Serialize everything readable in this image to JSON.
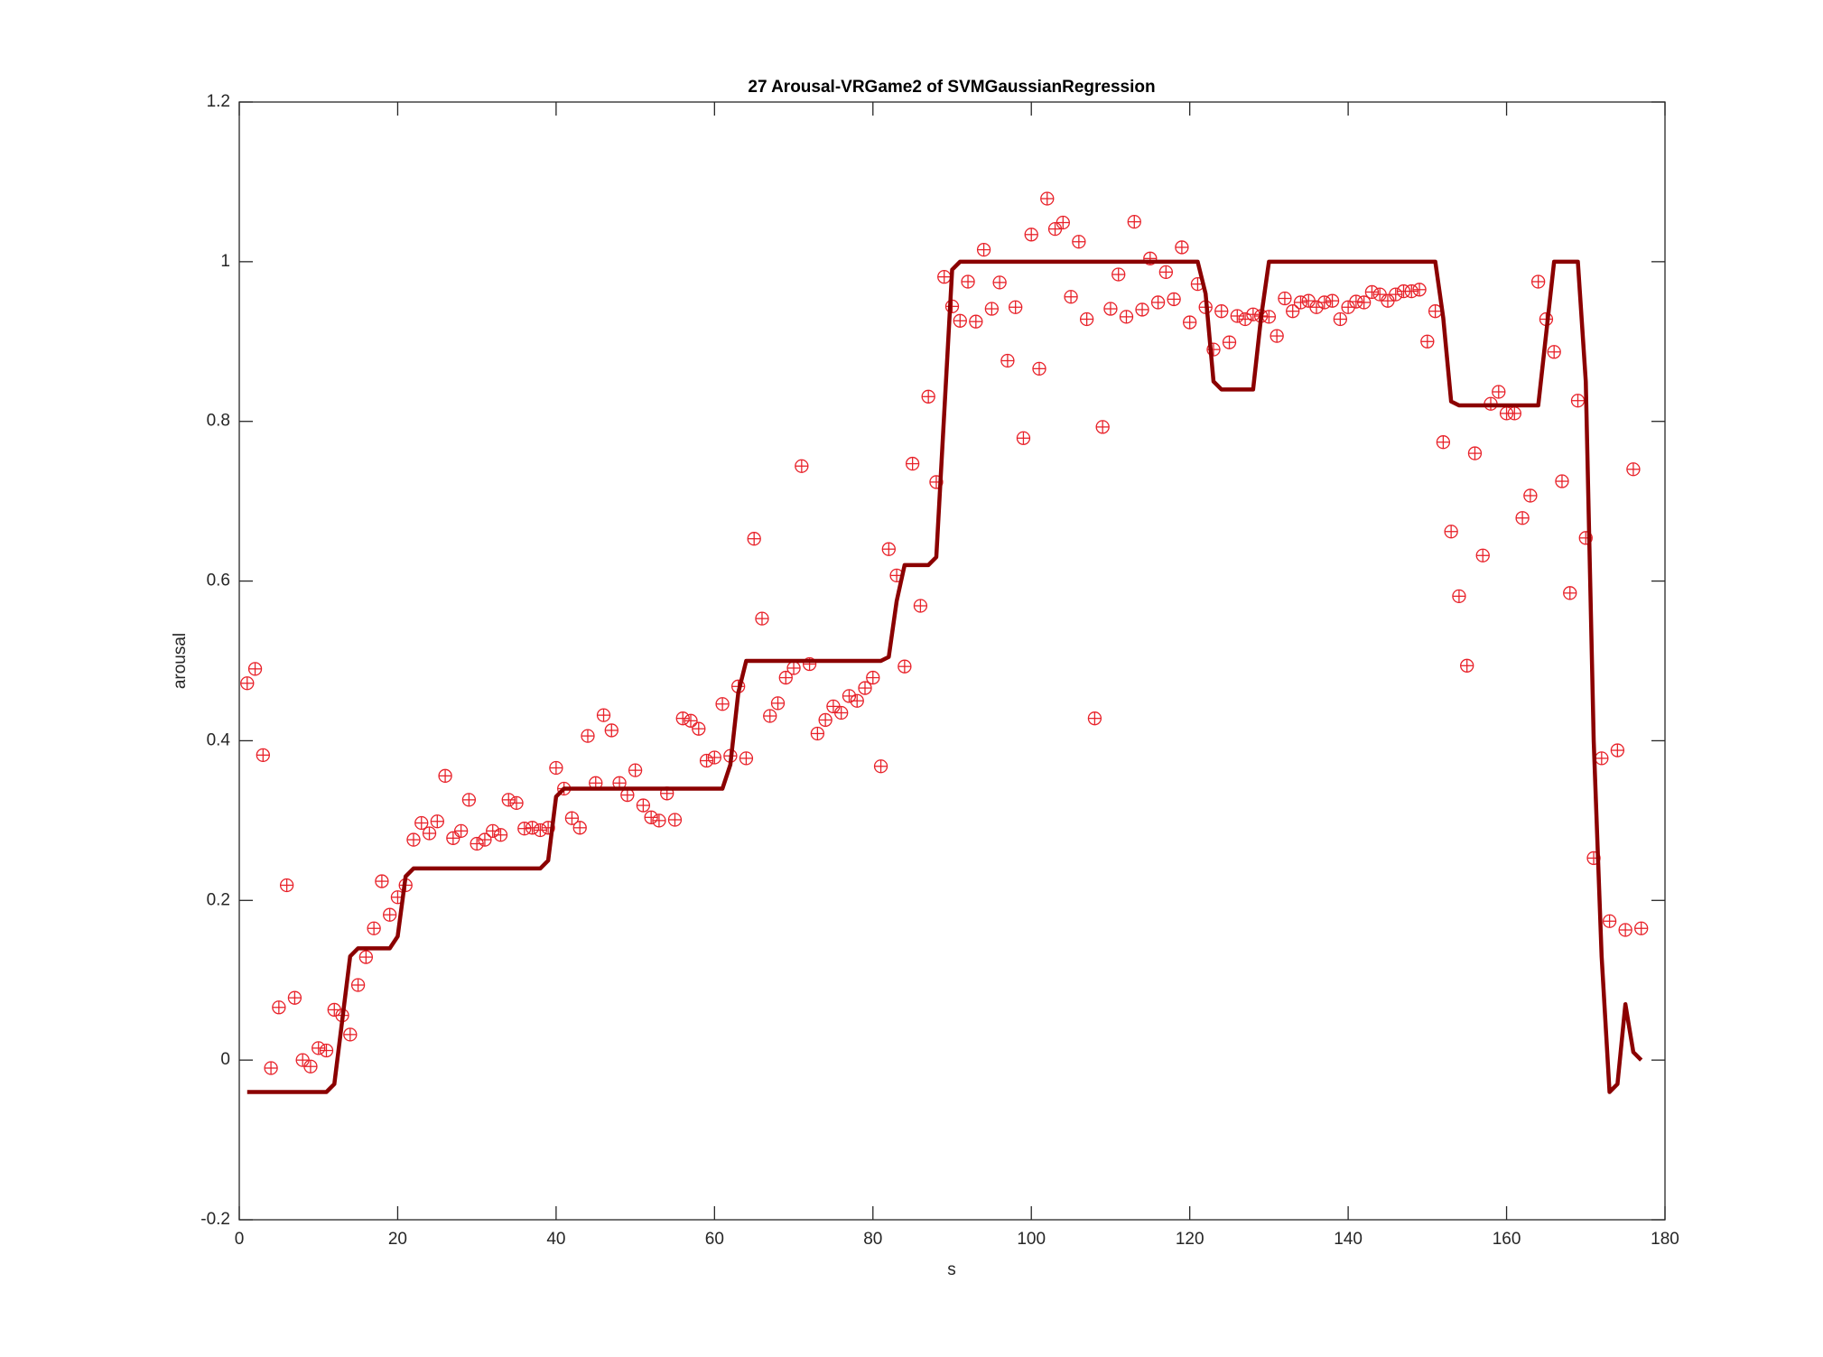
{
  "chart_data": {
    "type": "line",
    "title": "27 Arousal-VRGame2 of SVMGaussianRegression",
    "xlabel": "s",
    "ylabel": "arousal",
    "x": [
      1,
      2,
      3,
      4,
      5,
      6,
      7,
      8,
      9,
      10,
      11,
      12,
      13,
      14,
      15,
      16,
      17,
      18,
      19,
      20,
      21,
      22,
      23,
      24,
      25,
      26,
      27,
      28,
      29,
      30,
      31,
      32,
      33,
      34,
      35,
      36,
      37,
      38,
      39,
      40,
      41,
      42,
      43,
      44,
      45,
      46,
      47,
      48,
      49,
      50,
      51,
      52,
      53,
      54,
      55,
      56,
      57,
      58,
      59,
      60,
      61,
      62,
      63,
      64,
      65,
      66,
      67,
      68,
      69,
      70,
      71,
      72,
      73,
      74,
      75,
      76,
      77,
      78,
      79,
      80,
      81,
      82,
      83,
      84,
      85,
      86,
      87,
      88,
      89,
      90,
      91,
      92,
      93,
      94,
      95,
      96,
      97,
      98,
      99,
      100,
      101,
      102,
      103,
      104,
      105,
      106,
      107,
      108,
      109,
      110,
      111,
      112,
      113,
      114,
      115,
      116,
      117,
      118,
      119,
      120,
      121,
      122,
      123,
      124,
      125,
      126,
      127,
      128,
      129,
      130,
      131,
      132,
      133,
      134,
      135,
      136,
      137,
      138,
      139,
      140,
      141,
      142,
      143,
      144,
      145,
      146,
      147,
      148,
      149,
      150,
      151,
      152,
      153,
      154,
      155,
      156,
      157,
      158,
      159,
      160,
      161,
      162,
      163,
      164,
      165,
      166,
      167,
      168,
      169,
      170,
      171,
      172,
      173,
      174,
      175,
      176,
      177
    ],
    "series": [
      {
        "type": "scatter",
        "color": "#e8222a",
        "values": [
          0.472,
          0.49,
          0.382,
          -0.01,
          0.066,
          0.219,
          0.078,
          0.0,
          -0.008,
          0.015,
          0.012,
          0.063,
          0.056,
          0.032,
          0.094,
          0.129,
          0.165,
          0.224,
          0.182,
          0.204,
          0.219,
          0.276,
          0.297,
          0.284,
          0.299,
          0.356,
          0.278,
          0.287,
          0.326,
          0.271,
          0.276,
          0.287,
          0.282,
          0.326,
          0.322,
          0.29,
          0.291,
          0.288,
          0.291,
          0.366,
          0.34,
          0.303,
          0.291,
          0.406,
          0.347,
          0.432,
          0.413,
          0.347,
          0.332,
          0.363,
          0.319,
          0.304,
          0.3,
          0.334,
          0.301,
          0.428,
          0.425,
          0.415,
          0.375,
          0.379,
          0.446,
          0.381,
          0.468,
          0.378,
          0.653,
          0.553,
          0.431,
          0.447,
          0.479,
          0.491,
          0.744,
          0.496,
          0.409,
          0.426,
          0.443,
          0.435,
          0.456,
          0.45,
          0.466,
          0.479,
          0.368,
          0.64,
          0.607,
          0.493,
          0.747,
          0.569,
          0.831,
          0.724,
          0.981,
          0.944,
          0.926,
          0.975,
          0.925,
          1.015,
          0.941,
          0.974,
          0.876,
          0.943,
          0.779,
          1.034,
          0.866,
          1.079,
          1.041,
          1.049,
          0.956,
          1.025,
          0.928,
          0.428,
          0.793,
          0.941,
          0.984,
          0.931,
          1.05,
          0.94,
          1.004,
          0.949,
          0.987,
          0.953,
          1.018,
          0.924,
          0.972,
          0.943,
          0.89,
          0.938,
          0.899,
          0.932,
          0.928,
          0.934,
          0.932,
          0.931,
          0.907,
          0.954,
          0.938,
          0.949,
          0.951,
          0.943,
          0.949,
          0.951,
          0.928,
          0.943,
          0.95,
          0.949,
          0.962,
          0.959,
          0.951,
          0.959,
          0.963,
          0.963,
          0.965,
          0.9,
          0.938,
          0.774,
          0.662,
          0.581,
          0.494,
          0.76,
          0.632,
          0.822,
          0.837,
          0.81,
          0.81,
          0.679,
          0.707,
          0.975,
          0.928,
          0.887,
          0.725,
          0.585,
          0.826,
          0.654,
          0.253,
          0.378,
          0.174,
          0.388,
          0.163,
          0.74,
          0.165
        ]
      },
      {
        "type": "line",
        "color": "#8b0000",
        "values": [
          -0.04,
          -0.04,
          -0.04,
          -0.04,
          -0.04,
          -0.04,
          -0.04,
          -0.04,
          -0.04,
          -0.04,
          -0.04,
          -0.03,
          0.05,
          0.13,
          0.14,
          0.14,
          0.14,
          0.14,
          0.14,
          0.155,
          0.23,
          0.24,
          0.24,
          0.24,
          0.24,
          0.24,
          0.24,
          0.24,
          0.24,
          0.24,
          0.24,
          0.24,
          0.24,
          0.24,
          0.24,
          0.24,
          0.24,
          0.24,
          0.25,
          0.33,
          0.34,
          0.34,
          0.34,
          0.34,
          0.34,
          0.34,
          0.34,
          0.34,
          0.34,
          0.34,
          0.34,
          0.34,
          0.34,
          0.34,
          0.34,
          0.34,
          0.34,
          0.34,
          0.34,
          0.34,
          0.34,
          0.37,
          0.46,
          0.5,
          0.5,
          0.5,
          0.5,
          0.5,
          0.5,
          0.5,
          0.5,
          0.5,
          0.5,
          0.5,
          0.5,
          0.5,
          0.5,
          0.5,
          0.5,
          0.5,
          0.5,
          0.505,
          0.575,
          0.62,
          0.62,
          0.62,
          0.62,
          0.63,
          0.81,
          0.99,
          1.0,
          1.0,
          1.0,
          1.0,
          1.0,
          1.0,
          1.0,
          1.0,
          1.0,
          1.0,
          1.0,
          1.0,
          1.0,
          1.0,
          1.0,
          1.0,
          1.0,
          1.0,
          1.0,
          1.0,
          1.0,
          1.0,
          1.0,
          1.0,
          1.0,
          1.0,
          1.0,
          1.0,
          1.0,
          1.0,
          1.0,
          0.96,
          0.85,
          0.84,
          0.84,
          0.84,
          0.84,
          0.84,
          0.93,
          1.0,
          1.0,
          1.0,
          1.0,
          1.0,
          1.0,
          1.0,
          1.0,
          1.0,
          1.0,
          1.0,
          1.0,
          1.0,
          1.0,
          1.0,
          1.0,
          1.0,
          1.0,
          1.0,
          1.0,
          1.0,
          1.0,
          0.93,
          0.825,
          0.82,
          0.82,
          0.82,
          0.82,
          0.82,
          0.82,
          0.82,
          0.82,
          0.82,
          0.82,
          0.82,
          0.91,
          1.0,
          1.0,
          1.0,
          1.0,
          0.85,
          0.4,
          0.13,
          -0.04,
          -0.03,
          0.07,
          0.01,
          0.0
        ]
      }
    ],
    "xlim": [
      0,
      180
    ],
    "xticks": [
      0,
      20,
      40,
      60,
      80,
      100,
      120,
      140,
      160,
      180
    ],
    "ylim": [
      -0.2,
      1.2
    ],
    "yticks": [
      -0.2,
      0,
      0.2,
      0.4,
      0.6,
      0.8,
      1,
      1.2
    ]
  }
}
